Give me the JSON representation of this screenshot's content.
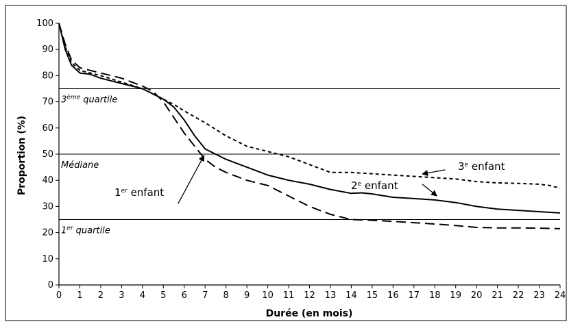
{
  "chart_data": {
    "type": "line",
    "title": "",
    "xlabel": "Durée (en mois)",
    "ylabel": "Proportion (%)",
    "xlim": [
      0,
      24
    ],
    "ylim": [
      0,
      100
    ],
    "x_ticks": [
      "0",
      "1",
      "2",
      "3",
      "4",
      "5",
      "6",
      "7",
      "8",
      "9",
      "10",
      "11",
      "12",
      "13",
      "14",
      "15",
      "16",
      "17",
      "18",
      "19",
      "20",
      "21",
      "22",
      "23",
      "24"
    ],
    "y_ticks": [
      "0",
      "10",
      "20",
      "30",
      "40",
      "50",
      "60",
      "70",
      "80",
      "90",
      "100"
    ],
    "grid": false,
    "reference_lines": [
      {
        "y": 75,
        "label_main": "3",
        "label_sup": "ème",
        "label_rest": " quartile"
      },
      {
        "y": 50,
        "label_main": "Médiane",
        "label_sup": "",
        "label_rest": ""
      },
      {
        "y": 25,
        "label_main": "1",
        "label_sup": "er",
        "label_rest": " quartile"
      }
    ],
    "series": [
      {
        "label_main": "1",
        "label_sup": "er",
        "label_rest": " enfant",
        "style": "long-dash",
        "x": [
          0,
          0.3,
          0.6,
          1,
          1.5,
          2,
          3,
          4,
          4.5,
          5,
          5.5,
          6,
          6.5,
          7,
          7.5,
          8,
          9,
          10,
          10.5,
          11,
          12,
          13,
          14,
          15,
          16,
          17,
          18,
          19,
          20,
          21,
          22,
          23,
          24
        ],
        "y": [
          100,
          92,
          86,
          83,
          82,
          81,
          79,
          76,
          74,
          70,
          64,
          58,
          53,
          48,
          45,
          43,
          40,
          38,
          36,
          34,
          30,
          27,
          25,
          24.7,
          24.3,
          23.8,
          23.3,
          22.7,
          22,
          21.8,
          21.8,
          21.7,
          21.5
        ]
      },
      {
        "label_main": "2",
        "label_sup": "e",
        "label_rest": " enfant",
        "style": "solid",
        "x": [
          0,
          0.3,
          0.6,
          1,
          1.5,
          2,
          3,
          4,
          4.5,
          5,
          5.5,
          6,
          6.5,
          7,
          7.5,
          8,
          9,
          10,
          10.5,
          11,
          12,
          13,
          14,
          14.5,
          15,
          16,
          17,
          18,
          19,
          20,
          21,
          22,
          23,
          24
        ],
        "y": [
          100,
          90,
          84,
          81,
          80.5,
          79,
          77,
          75,
          73,
          71,
          68,
          63,
          57,
          52,
          50,
          48,
          45,
          42,
          41,
          40,
          38.5,
          36.5,
          35,
          35.2,
          34.8,
          33.5,
          33,
          32.5,
          31.5,
          30,
          29,
          28.5,
          28,
          27.5
        ]
      },
      {
        "label_main": "3",
        "label_sup": "e",
        "label_rest": " enfant",
        "style": "short-dash",
        "x": [
          0,
          0.3,
          0.6,
          1,
          1.5,
          2,
          3,
          4,
          4.5,
          5,
          5.5,
          6,
          7,
          8,
          9,
          10,
          10.5,
          11,
          12,
          13,
          14,
          15,
          16,
          17,
          18,
          19,
          20,
          21,
          22,
          23,
          23.5,
          24
        ],
        "y": [
          100,
          91,
          85,
          82,
          81,
          80,
          77.5,
          75,
          73,
          71,
          69,
          66.5,
          62,
          57,
          53,
          51,
          50,
          49,
          46,
          43,
          43,
          42.5,
          42,
          41.5,
          41,
          40.5,
          39.5,
          39,
          38.8,
          38.5,
          38,
          37
        ]
      }
    ]
  }
}
